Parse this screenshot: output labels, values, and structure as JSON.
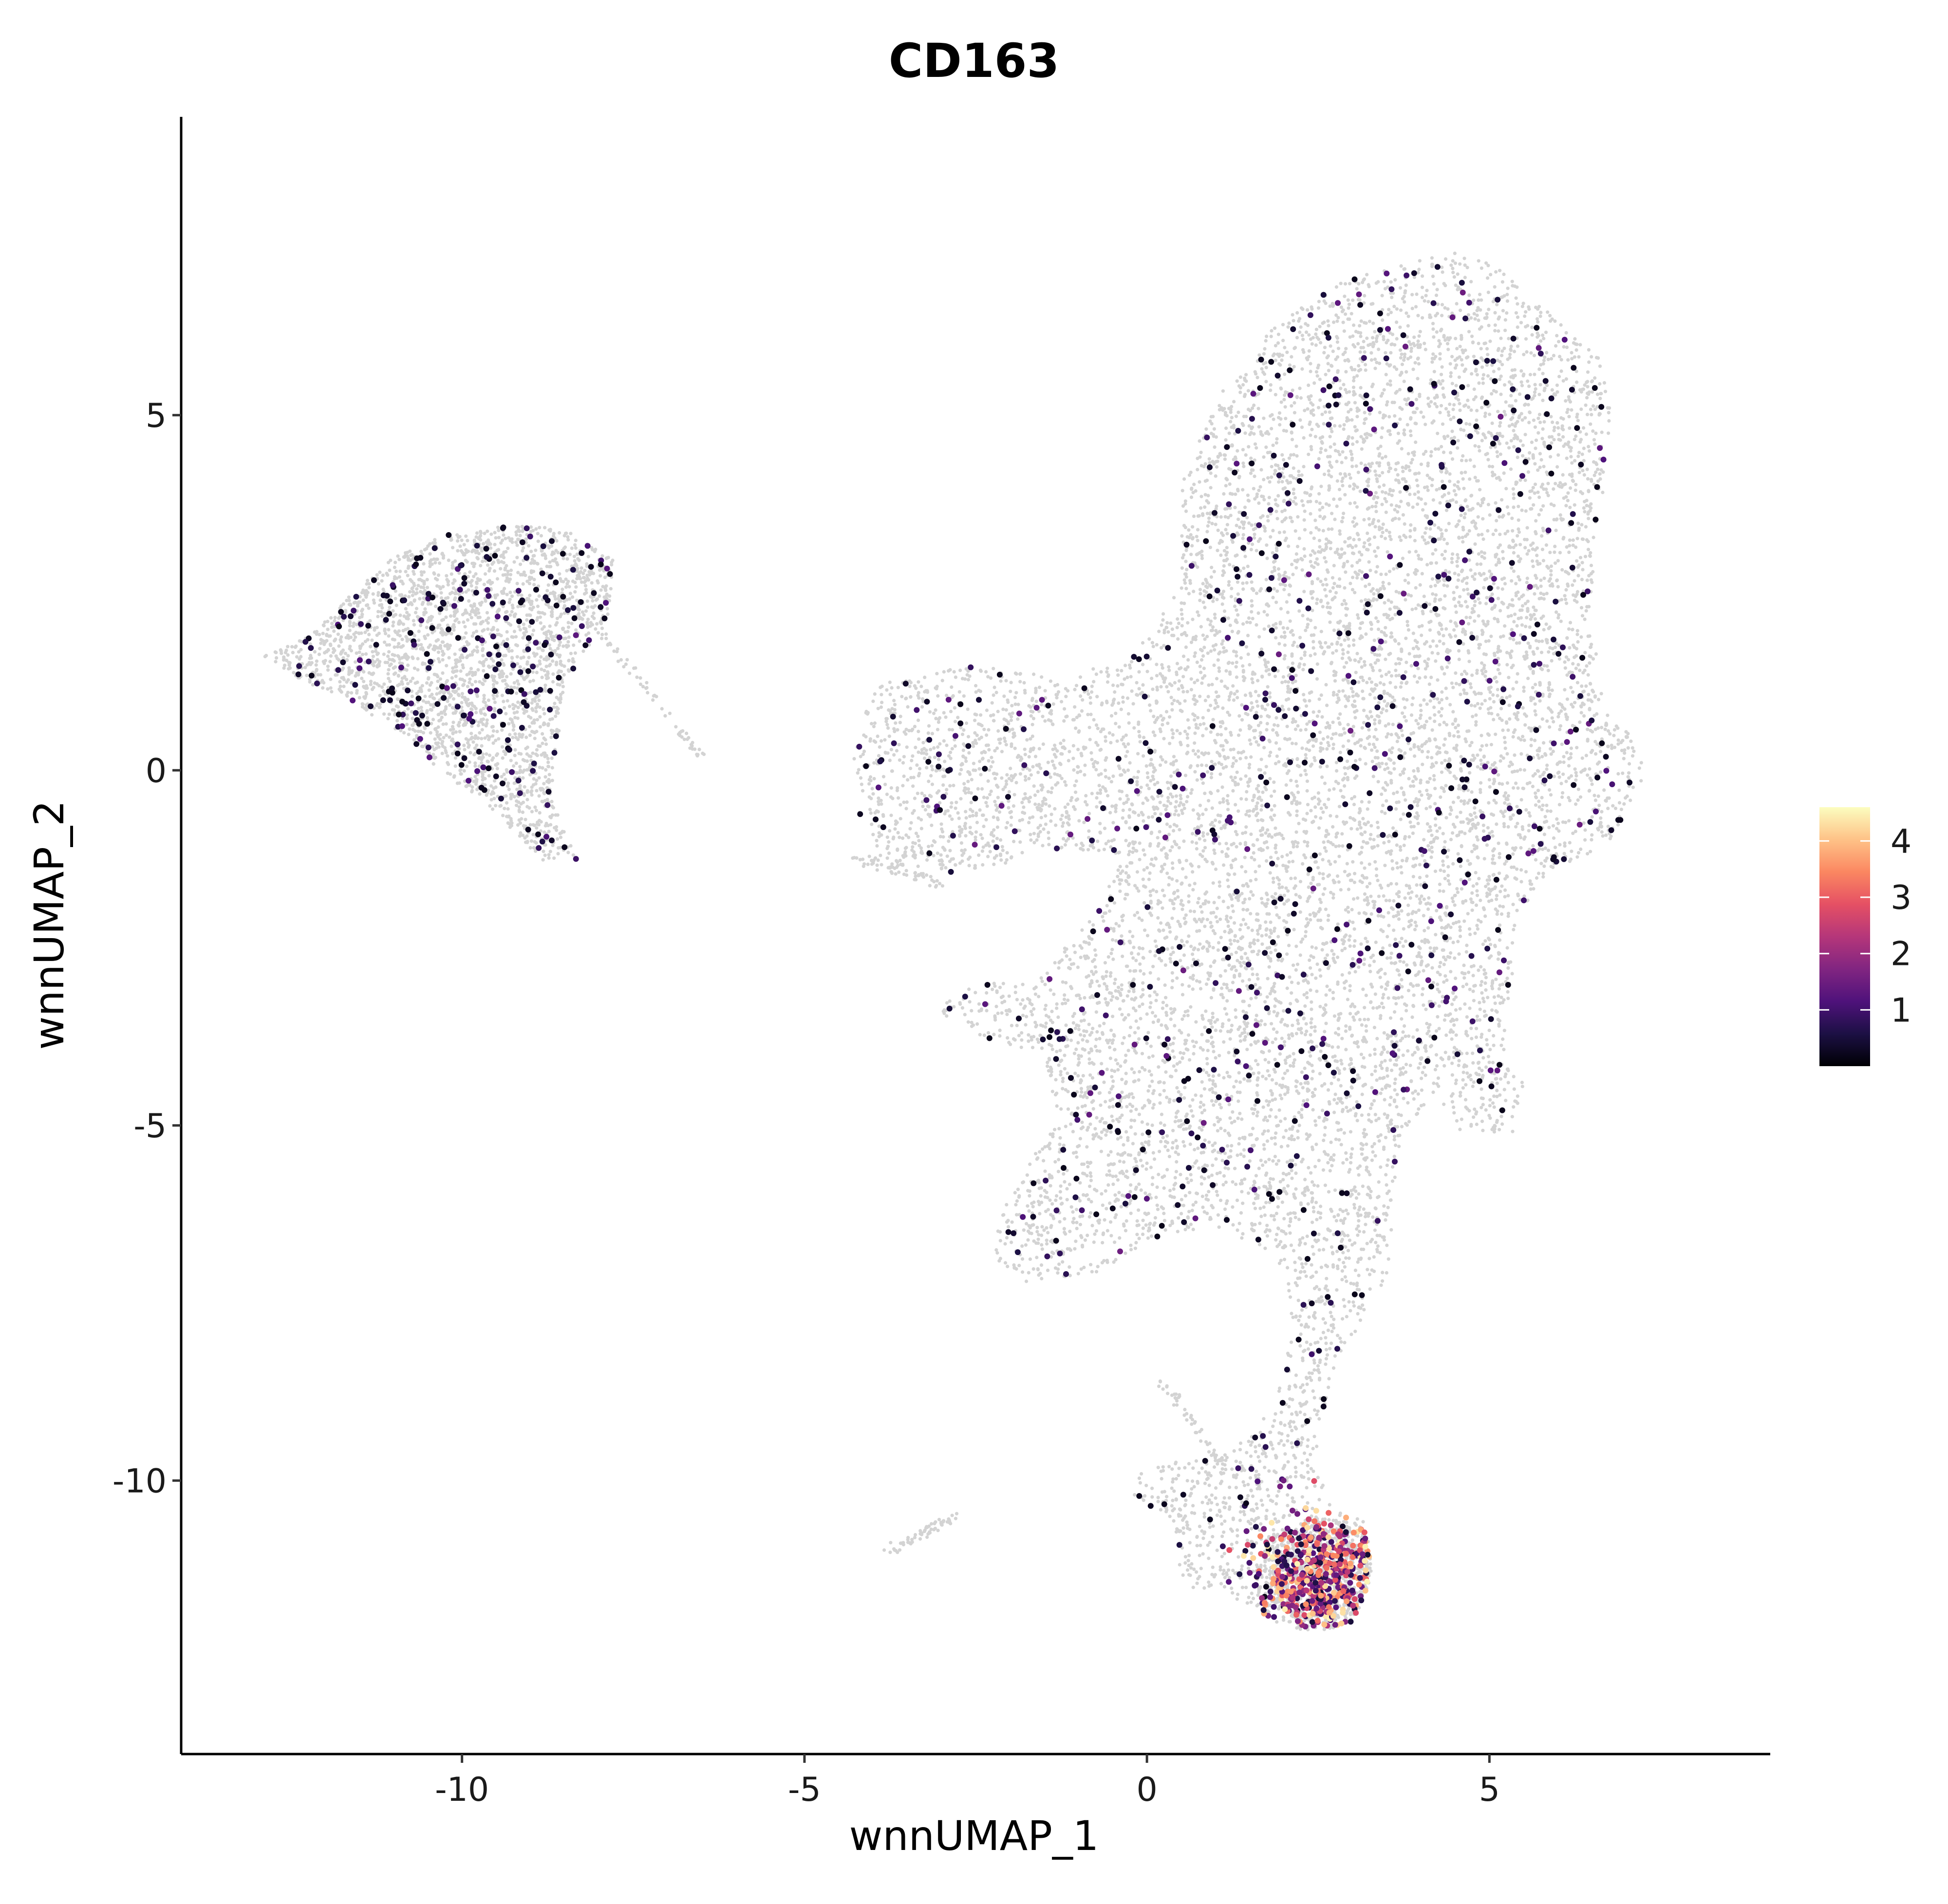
{
  "chart_data": {
    "type": "scatter",
    "title": "CD163",
    "xlabel": "wnnUMAP_1",
    "ylabel": "wnnUMAP_2",
    "xlim": [
      -14.1,
      9.1
    ],
    "ylim": [
      -13.85,
      9.2
    ],
    "x_ticks": [
      -10,
      -5,
      0,
      5
    ],
    "y_ticks": [
      5,
      0,
      -5,
      -10
    ],
    "x_tick_labels": [
      "-10",
      "-5",
      "0",
      "5"
    ],
    "y_tick_labels": [
      "5",
      "0",
      "-5",
      "-10"
    ],
    "grid": false,
    "legend_position": "right",
    "colorbar": {
      "min": 0,
      "max": 4.6,
      "ticks": [
        1,
        2,
        3,
        4
      ],
      "tick_labels": [
        "1",
        "2",
        "3",
        "4"
      ],
      "colormap": [
        "#000004",
        "#1c1044",
        "#4f127b",
        "#812581",
        "#b5367a",
        "#e55064",
        "#fb8761",
        "#fec287",
        "#fcfdbf"
      ]
    },
    "background_color": "#d3d3d3",
    "regions": [
      {
        "name": "left island",
        "polygon": [
          [
            -12.9,
            1.6
          ],
          [
            -12.2,
            1.9
          ],
          [
            -11.6,
            2.5
          ],
          [
            -11.0,
            3.0
          ],
          [
            -10.3,
            3.3
          ],
          [
            -9.3,
            3.45
          ],
          [
            -8.5,
            3.4
          ],
          [
            -7.8,
            3.0
          ],
          [
            -7.8,
            2.3
          ],
          [
            -8.5,
            1.2
          ],
          [
            -8.7,
            -0.4
          ],
          [
            -8.3,
            -1.3
          ],
          [
            -8.8,
            -1.3
          ],
          [
            -9.6,
            -0.5
          ],
          [
            -10.2,
            -0.1
          ],
          [
            -10.9,
            0.5
          ],
          [
            -11.5,
            0.9
          ],
          [
            -12.4,
            1.3
          ]
        ]
      },
      {
        "name": "main mass",
        "polygon": [
          [
            -4.3,
            0.1
          ],
          [
            -4.0,
            1.2
          ],
          [
            -2.5,
            1.5
          ],
          [
            -1.3,
            1.3
          ],
          [
            -0.2,
            1.6
          ],
          [
            0.5,
            2.6
          ],
          [
            0.5,
            4.0
          ],
          [
            1.0,
            5.2
          ],
          [
            1.7,
            6.1
          ],
          [
            2.6,
            6.8
          ],
          [
            3.6,
            7.1
          ],
          [
            4.5,
            7.3
          ],
          [
            5.1,
            7.1
          ],
          [
            5.8,
            6.5
          ],
          [
            6.6,
            5.8
          ],
          [
            6.8,
            5.0
          ],
          [
            6.6,
            3.5
          ],
          [
            6.5,
            2.0
          ],
          [
            6.7,
            1.0
          ],
          [
            7.0,
            0.6
          ],
          [
            7.3,
            0.0
          ],
          [
            6.8,
            -1.0
          ],
          [
            5.8,
            -1.5
          ],
          [
            5.4,
            -2.1
          ],
          [
            5.3,
            -3.3
          ],
          [
            5.2,
            -4.1
          ],
          [
            5.5,
            -4.4
          ],
          [
            5.4,
            -5.1
          ],
          [
            4.6,
            -5.1
          ],
          [
            4.1,
            -4.7
          ],
          [
            3.7,
            -5.1
          ],
          [
            3.6,
            -6.3
          ],
          [
            3.5,
            -7.2
          ],
          [
            3.1,
            -7.8
          ],
          [
            2.7,
            -8.5
          ],
          [
            2.5,
            -9.4
          ],
          [
            2.6,
            -10.3
          ],
          [
            3.2,
            -10.6
          ],
          [
            3.3,
            -11.3
          ],
          [
            3.0,
            -12.0
          ],
          [
            2.5,
            -12.1
          ],
          [
            1.8,
            -12.0
          ],
          [
            1.4,
            -11.7
          ],
          [
            0.9,
            -11.6
          ],
          [
            0.5,
            -11.5
          ],
          [
            0.4,
            -10.6
          ],
          [
            -0.2,
            -10.2
          ],
          [
            -0.1,
            -9.8
          ],
          [
            0.6,
            -9.7
          ],
          [
            1.2,
            -9.6
          ],
          [
            1.7,
            -9.1
          ],
          [
            2.0,
            -8.5
          ],
          [
            2.1,
            -7.6
          ],
          [
            1.9,
            -6.8
          ],
          [
            1.1,
            -6.5
          ],
          [
            0.3,
            -6.5
          ],
          [
            -0.8,
            -7.1
          ],
          [
            -1.8,
            -7.2
          ],
          [
            -2.2,
            -6.9
          ],
          [
            -2.2,
            -6.3
          ],
          [
            -1.7,
            -5.5
          ],
          [
            -1.3,
            -4.9
          ],
          [
            -1.5,
            -4.0
          ],
          [
            -2.3,
            -3.8
          ],
          [
            -3.1,
            -3.4
          ],
          [
            -2.6,
            -3.0
          ],
          [
            -1.7,
            -3.0
          ],
          [
            -0.9,
            -2.2
          ],
          [
            -0.3,
            -1.2
          ],
          [
            -1.3,
            -1.1
          ],
          [
            -2.0,
            -1.3
          ],
          [
            -3.2,
            -1.5
          ],
          [
            -3.9,
            -1.2
          ],
          [
            -4.2,
            -0.6
          ]
        ]
      },
      {
        "name": "bottom blob",
        "polygon": [
          [
            1.7,
            -10.8
          ],
          [
            2.4,
            -10.5
          ],
          [
            3.0,
            -10.6
          ],
          [
            3.3,
            -11.2
          ],
          [
            3.1,
            -11.8
          ],
          [
            2.7,
            -12.1
          ],
          [
            2.1,
            -12.1
          ],
          [
            1.6,
            -11.6
          ]
        ]
      }
    ],
    "streaks": [
      {
        "from": [
          -8.0,
          2.0
        ],
        "to": [
          -6.45,
          0.1
        ]
      },
      {
        "from": [
          -3.8,
          -11.0
        ],
        "to": [
          -2.8,
          -10.5
        ]
      },
      {
        "from": [
          0.2,
          -8.6
        ],
        "to": [
          1.2,
          -9.9
        ]
      },
      {
        "from": [
          -4.3,
          -1.2
        ],
        "to": [
          -3.0,
          -1.6
        ]
      }
    ],
    "expression_clusters": [
      {
        "name": "left island cells",
        "n": 230,
        "polygon_ref": "left island",
        "value_range": [
          0.2,
          1.3
        ]
      },
      {
        "name": "main mass cells",
        "n": 700,
        "polygon_ref": "main mass",
        "value_range": [
          0.2,
          1.5
        ]
      },
      {
        "name": "high CD163 cluster",
        "center": [
          2.55,
          -11.35
        ],
        "spread": [
          0.45,
          0.42
        ],
        "n": 480,
        "value_range": [
          0.4,
          4.6
        ]
      }
    ]
  }
}
